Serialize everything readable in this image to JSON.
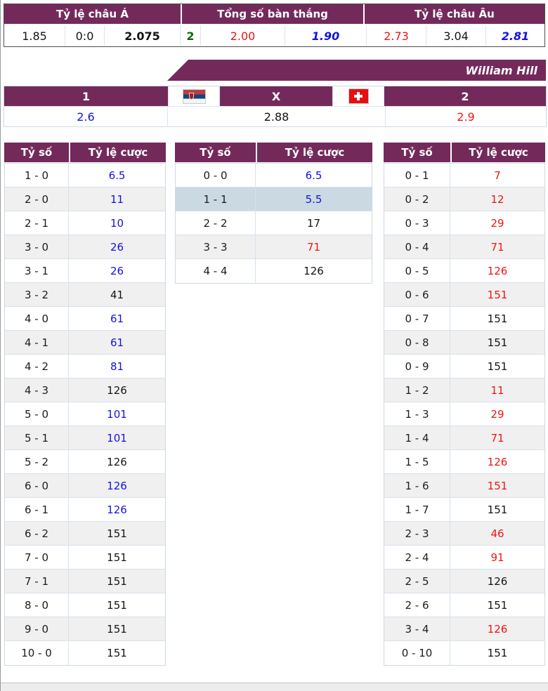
{
  "top_odds": {
    "headers": [
      {
        "label": "Tỷ lệ châu Á"
      },
      {
        "label": "Tổng số bàn thắng"
      },
      {
        "label": "Tỷ lệ châu Âu"
      }
    ],
    "values": [
      {
        "text": "1.85",
        "color": "black",
        "style": ""
      },
      {
        "text": "0:0",
        "color": "black",
        "style": ""
      },
      {
        "text": "2.075",
        "color": "black",
        "style": "bold"
      },
      {
        "text": "2",
        "color": "green",
        "style": "bold"
      },
      {
        "text": "2.00",
        "color": "red",
        "style": ""
      },
      {
        "text": "1.90",
        "color": "blue",
        "style": "bold italic"
      },
      {
        "text": "2.73",
        "color": "red",
        "style": ""
      },
      {
        "text": "3.04",
        "color": "black",
        "style": ""
      },
      {
        "text": "2.81",
        "color": "blue",
        "style": "bold italic"
      }
    ]
  },
  "bookmaker": {
    "name": "William Hill"
  },
  "match_odds": {
    "home": {
      "label": "1",
      "flag": "serbia",
      "odds": "2.6",
      "color": "blue"
    },
    "draw": {
      "label": "X",
      "odds": "2.88",
      "color": "black"
    },
    "away": {
      "label": "2",
      "flag": "switzerland",
      "odds": "2.9",
      "color": "red"
    }
  },
  "score_tables": {
    "col_score": "Tỷ số",
    "col_odds": "Tỷ lệ cược",
    "tables": [
      {
        "name": "home-win-scores",
        "rows": [
          {
            "score": "1 - 0",
            "odds": "6.5",
            "color": "blue"
          },
          {
            "score": "2 - 0",
            "odds": "11",
            "color": "blue"
          },
          {
            "score": "2 - 1",
            "odds": "10",
            "color": "blue"
          },
          {
            "score": "3 - 0",
            "odds": "26",
            "color": "blue"
          },
          {
            "score": "3 - 1",
            "odds": "26",
            "color": "blue"
          },
          {
            "score": "3 - 2",
            "odds": "41",
            "color": "black"
          },
          {
            "score": "4 - 0",
            "odds": "61",
            "color": "blue"
          },
          {
            "score": "4 - 1",
            "odds": "61",
            "color": "blue"
          },
          {
            "score": "4 - 2",
            "odds": "81",
            "color": "blue"
          },
          {
            "score": "4 - 3",
            "odds": "126",
            "color": "black"
          },
          {
            "score": "5 - 0",
            "odds": "101",
            "color": "blue"
          },
          {
            "score": "5 - 1",
            "odds": "101",
            "color": "blue"
          },
          {
            "score": "5 - 2",
            "odds": "126",
            "color": "black"
          },
          {
            "score": "6 - 0",
            "odds": "126",
            "color": "blue"
          },
          {
            "score": "6 - 1",
            "odds": "126",
            "color": "blue"
          },
          {
            "score": "6 - 2",
            "odds": "151",
            "color": "black"
          },
          {
            "score": "7 - 0",
            "odds": "151",
            "color": "black"
          },
          {
            "score": "7 - 1",
            "odds": "151",
            "color": "black"
          },
          {
            "score": "8 - 0",
            "odds": "151",
            "color": "black"
          },
          {
            "score": "9 - 0",
            "odds": "151",
            "color": "black"
          },
          {
            "score": "10 - 0",
            "odds": "151",
            "color": "black"
          }
        ]
      },
      {
        "name": "draw-scores",
        "rows": [
          {
            "score": "0 - 0",
            "odds": "6.5",
            "color": "blue"
          },
          {
            "score": "1 - 1",
            "odds": "5.5",
            "color": "blue",
            "highlight": true
          },
          {
            "score": "2 - 2",
            "odds": "17",
            "color": "black"
          },
          {
            "score": "3 - 3",
            "odds": "71",
            "color": "red"
          },
          {
            "score": "4 - 4",
            "odds": "126",
            "color": "black"
          }
        ]
      },
      {
        "name": "away-win-scores",
        "rows": [
          {
            "score": "0 - 1",
            "odds": "7",
            "color": "red"
          },
          {
            "score": "0 - 2",
            "odds": "12",
            "color": "red"
          },
          {
            "score": "0 - 3",
            "odds": "29",
            "color": "red"
          },
          {
            "score": "0 - 4",
            "odds": "71",
            "color": "red"
          },
          {
            "score": "0 - 5",
            "odds": "126",
            "color": "red"
          },
          {
            "score": "0 - 6",
            "odds": "151",
            "color": "red"
          },
          {
            "score": "0 - 7",
            "odds": "151",
            "color": "black"
          },
          {
            "score": "0 - 8",
            "odds": "151",
            "color": "black"
          },
          {
            "score": "0 - 9",
            "odds": "151",
            "color": "black"
          },
          {
            "score": "1 - 2",
            "odds": "11",
            "color": "red"
          },
          {
            "score": "1 - 3",
            "odds": "29",
            "color": "red"
          },
          {
            "score": "1 - 4",
            "odds": "71",
            "color": "red"
          },
          {
            "score": "1 - 5",
            "odds": "126",
            "color": "red"
          },
          {
            "score": "1 - 6",
            "odds": "151",
            "color": "red"
          },
          {
            "score": "1 - 7",
            "odds": "151",
            "color": "black"
          },
          {
            "score": "2 - 3",
            "odds": "46",
            "color": "red"
          },
          {
            "score": "2 - 4",
            "odds": "91",
            "color": "red"
          },
          {
            "score": "2 - 5",
            "odds": "126",
            "color": "black"
          },
          {
            "score": "2 - 6",
            "odds": "151",
            "color": "black"
          },
          {
            "score": "3 - 4",
            "odds": "126",
            "color": "red"
          },
          {
            "score": "0 - 10",
            "odds": "151",
            "color": "black"
          }
        ]
      }
    ]
  },
  "colors": {
    "purple": "#732A5B",
    "odds_up_blue": "#1313E0",
    "odds_down_red": "#F01414",
    "total_line_green": "#0A6A0A",
    "highlight_row": "#CBD9E2"
  }
}
